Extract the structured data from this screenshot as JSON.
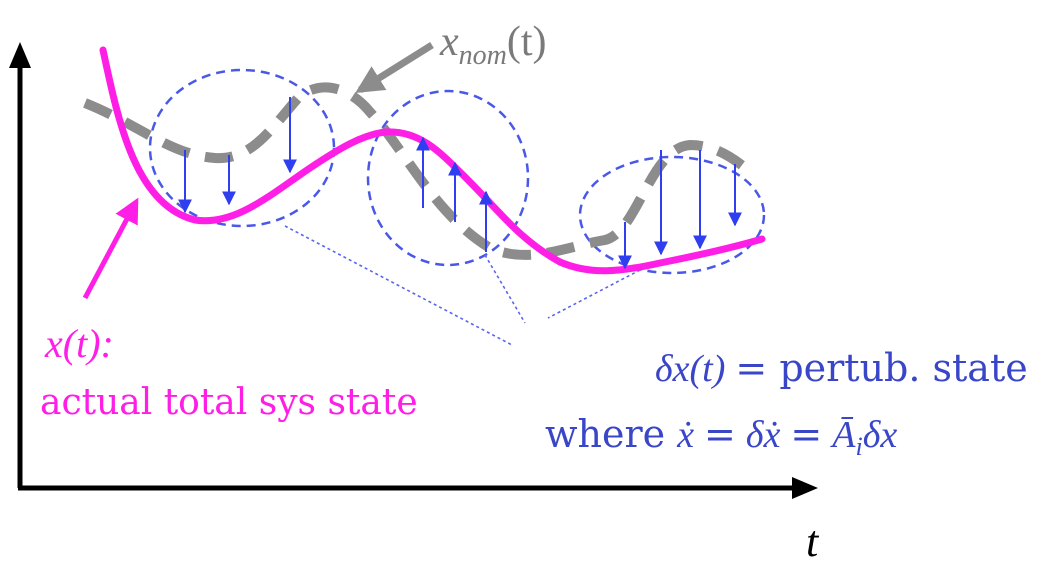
{
  "labels": {
    "t_axis": "t",
    "nominal_main": "x",
    "nominal_sub": "nom",
    "nominal_arg": "(t)",
    "actual_expr": "x(t):",
    "actual_desc": "actual total sys state",
    "pert_expr": "δx(t)",
    "pert_eq": "= pertub. state",
    "where_word": "where",
    "where_lhs": "ẋ",
    "where_eq1": "=",
    "where_mid": "δẋ",
    "where_eq2": "=",
    "where_A": "Ā",
    "where_A_sub": "i",
    "where_rhs": "δx"
  },
  "colors": {
    "axis": "#000000",
    "actual": "#ff1ee6",
    "nominal": "#8c8c8c",
    "pert": "#4050e0",
    "pert_text": "#3a46c8",
    "nominal_text": "#7a7a7a"
  },
  "icons": {
    "x_axis_arrow": "arrowhead-right",
    "y_axis_arrow": "arrowhead-up"
  }
}
